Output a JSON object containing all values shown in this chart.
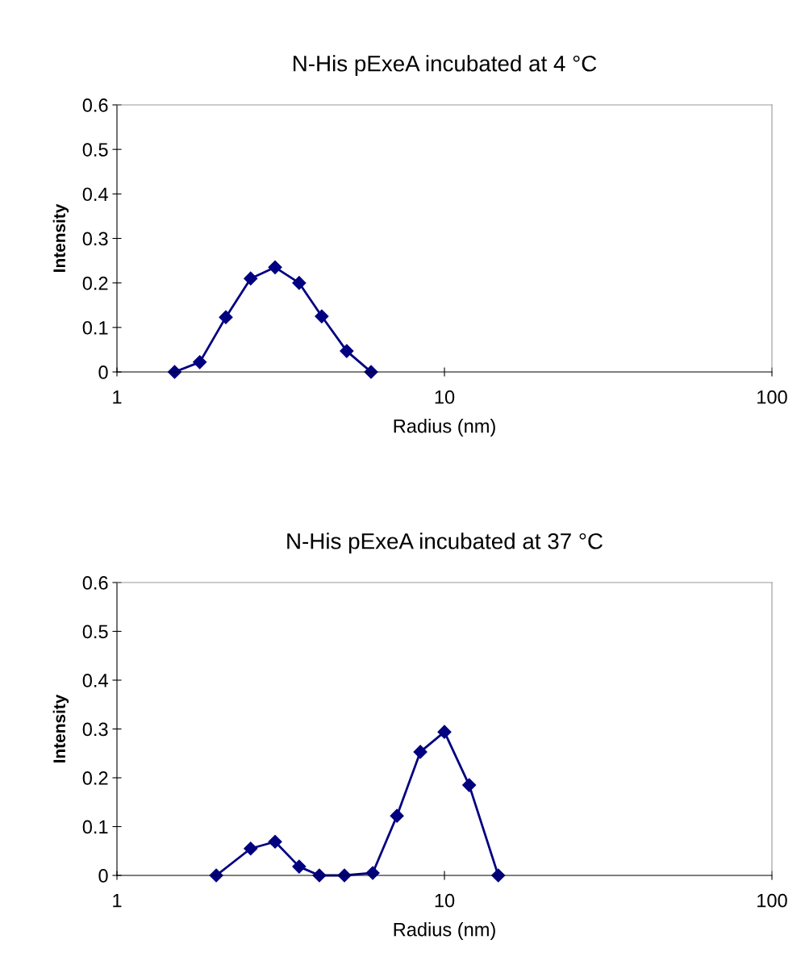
{
  "chart_data": [
    {
      "type": "line",
      "title": "N-His pExeA incubated at 4 °C",
      "xlabel": "Radius (nm)",
      "ylabel": "Intensity",
      "log": "x",
      "marker": "diamond",
      "line_style": "solid",
      "grid": false,
      "legend": false,
      "xlim": [
        1,
        100
      ],
      "xticks": [
        1,
        10,
        100
      ],
      "ylim": [
        0,
        0.6
      ],
      "yticks": [
        0,
        0.1,
        0.2,
        0.3,
        0.4,
        0.5,
        0.6
      ],
      "series": [
        {
          "color": "#000080",
          "x": [
            1.5,
            1.79,
            2.15,
            2.56,
            3.04,
            3.6,
            4.22,
            5.03,
            5.97
          ],
          "values": [
            0,
            0.022,
            0.123,
            0.21,
            0.235,
            0.2,
            0.125,
            0.047,
            0
          ]
        }
      ]
    },
    {
      "type": "line",
      "title": "N-His pExeA incubated at 37 °C",
      "xlabel": "Radius (nm)",
      "ylabel": "Intensity",
      "log": "x",
      "marker": "diamond",
      "line_style": "solid",
      "grid": false,
      "legend": false,
      "xlim": [
        1,
        100
      ],
      "xticks": [
        1,
        10,
        100
      ],
      "ylim": [
        0,
        0.6
      ],
      "yticks": [
        0,
        0.1,
        0.2,
        0.3,
        0.4,
        0.5,
        0.6
      ],
      "series": [
        {
          "color": "#000080",
          "x": [
            2.01,
            2.56,
            3.04,
            3.6,
            4.15,
            4.95,
            6.04,
            7.16,
            8.44,
            10.0,
            11.9,
            14.6
          ],
          "values": [
            0,
            0.055,
            0.069,
            0.018,
            0,
            0,
            0.005,
            0.122,
            0.253,
            0.294,
            0.185,
            0
          ]
        }
      ]
    }
  ]
}
